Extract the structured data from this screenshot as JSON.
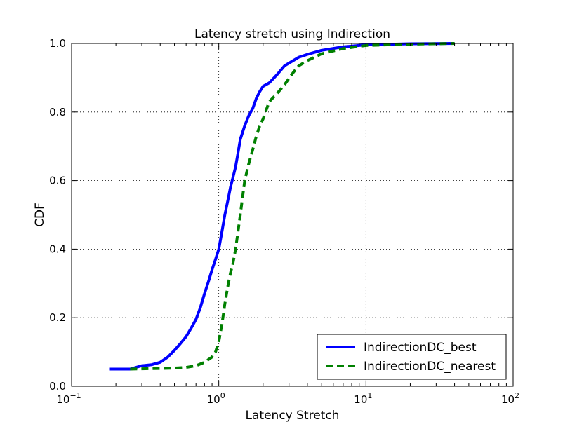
{
  "chart_data": {
    "type": "line",
    "title": "Latency stretch using Indirection",
    "xlabel": "Latency Stretch",
    "ylabel": "CDF",
    "xscale": "log",
    "xlim": [
      0.1,
      100
    ],
    "ylim": [
      0.0,
      1.0
    ],
    "grid": true,
    "legend_position": "lower-right",
    "x_ticks": [
      {
        "base": "10",
        "exp": "−1",
        "value": 0.1
      },
      {
        "base": "10",
        "exp": "0",
        "value": 1
      },
      {
        "base": "10",
        "exp": "1",
        "value": 10
      },
      {
        "base": "10",
        "exp": "2",
        "value": 100
      }
    ],
    "y_ticks": [
      "0.0",
      "0.2",
      "0.4",
      "0.6",
      "0.8",
      "1.0"
    ],
    "series": [
      {
        "name": "IndirectionDC_best",
        "color": "#0000ff",
        "style": "solid",
        "points": [
          [
            0.18,
            0.05
          ],
          [
            0.25,
            0.05
          ],
          [
            0.3,
            0.06
          ],
          [
            0.35,
            0.063
          ],
          [
            0.4,
            0.07
          ],
          [
            0.45,
            0.085
          ],
          [
            0.5,
            0.105
          ],
          [
            0.55,
            0.125
          ],
          [
            0.6,
            0.145
          ],
          [
            0.65,
            0.17
          ],
          [
            0.7,
            0.195
          ],
          [
            0.75,
            0.23
          ],
          [
            0.8,
            0.27
          ],
          [
            0.85,
            0.305
          ],
          [
            0.9,
            0.34
          ],
          [
            0.95,
            0.37
          ],
          [
            1.0,
            0.4
          ],
          [
            1.05,
            0.45
          ],
          [
            1.1,
            0.5
          ],
          [
            1.15,
            0.54
          ],
          [
            1.2,
            0.58
          ],
          [
            1.3,
            0.64
          ],
          [
            1.35,
            0.68
          ],
          [
            1.4,
            0.72
          ],
          [
            1.5,
            0.76
          ],
          [
            1.6,
            0.79
          ],
          [
            1.7,
            0.81
          ],
          [
            1.8,
            0.84
          ],
          [
            1.9,
            0.86
          ],
          [
            2.0,
            0.875
          ],
          [
            2.2,
            0.885
          ],
          [
            2.5,
            0.91
          ],
          [
            2.8,
            0.935
          ],
          [
            3.2,
            0.95
          ],
          [
            3.5,
            0.96
          ],
          [
            4.0,
            0.968
          ],
          [
            5.0,
            0.98
          ],
          [
            7.0,
            0.99
          ],
          [
            10.0,
            0.996
          ],
          [
            20.0,
            0.999
          ],
          [
            40.0,
            1.0
          ]
        ]
      },
      {
        "name": "IndirectionDC_nearest",
        "color": "#008000",
        "style": "dashed",
        "points": [
          [
            0.25,
            0.05
          ],
          [
            0.3,
            0.051
          ],
          [
            0.4,
            0.052
          ],
          [
            0.5,
            0.053
          ],
          [
            0.6,
            0.055
          ],
          [
            0.7,
            0.06
          ],
          [
            0.8,
            0.07
          ],
          [
            0.9,
            0.085
          ],
          [
            0.95,
            0.1
          ],
          [
            1.0,
            0.13
          ],
          [
            1.05,
            0.18
          ],
          [
            1.1,
            0.24
          ],
          [
            1.15,
            0.29
          ],
          [
            1.2,
            0.33
          ],
          [
            1.25,
            0.36
          ],
          [
            1.3,
            0.4
          ],
          [
            1.35,
            0.45
          ],
          [
            1.4,
            0.5
          ],
          [
            1.45,
            0.55
          ],
          [
            1.5,
            0.6
          ],
          [
            1.6,
            0.65
          ],
          [
            1.7,
            0.69
          ],
          [
            1.8,
            0.73
          ],
          [
            1.9,
            0.76
          ],
          [
            2.0,
            0.78
          ],
          [
            2.2,
            0.83
          ],
          [
            2.5,
            0.855
          ],
          [
            2.8,
            0.88
          ],
          [
            3.2,
            0.915
          ],
          [
            3.5,
            0.935
          ],
          [
            4.0,
            0.95
          ],
          [
            5.0,
            0.97
          ],
          [
            7.0,
            0.985
          ],
          [
            10.0,
            0.994
          ],
          [
            20.0,
            0.998
          ],
          [
            40.0,
            1.0
          ]
        ]
      }
    ]
  }
}
